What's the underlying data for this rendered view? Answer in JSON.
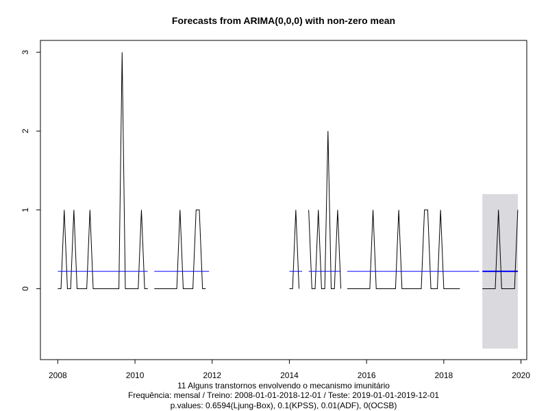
{
  "chart_data": {
    "type": "line",
    "title": "Forecasts from ARIMA(0,0,0) with non-zero mean",
    "xlabel": "",
    "ylabel": "",
    "xlim": [
      2007.55,
      2020.15
    ],
    "ylim": [
      -0.9,
      3.15
    ],
    "x_ticks": [
      2008,
      2010,
      2012,
      2014,
      2016,
      2018,
      2020
    ],
    "y_ticks": [
      0,
      1,
      2,
      3
    ],
    "grid": false,
    "series": [
      {
        "role": "observed",
        "color": "#000000",
        "t0": 2008.0,
        "step": 0.08333333,
        "values": [
          0,
          0,
          1,
          0,
          0,
          1,
          0,
          0,
          0,
          0,
          1,
          0,
          0,
          0,
          0,
          0,
          0,
          0,
          0,
          0,
          3,
          0,
          0,
          0,
          0,
          0,
          1,
          0,
          0,
          null,
          0,
          0,
          0,
          0,
          0,
          0,
          0,
          0,
          1,
          0,
          0,
          0,
          0,
          1,
          1,
          0,
          0,
          null,
          null,
          null,
          null,
          null,
          null,
          null,
          null,
          null,
          null,
          null,
          null,
          null,
          null,
          null,
          null,
          null,
          null,
          null,
          null,
          null,
          null,
          null,
          null,
          null,
          0,
          0,
          1,
          0,
          null,
          null,
          1,
          0,
          0,
          1,
          0,
          0,
          2,
          0,
          0,
          1,
          0,
          null,
          0,
          0,
          0,
          0,
          0,
          0,
          0,
          0,
          1,
          0,
          0,
          0,
          0,
          0,
          0,
          0,
          1,
          0,
          0,
          0,
          0,
          0,
          0,
          0,
          1,
          1,
          0,
          0,
          0,
          1,
          0,
          0,
          0,
          0,
          0,
          0
        ]
      },
      {
        "role": "fitted-mean",
        "color": "#0000ff",
        "segments": [
          {
            "x": [
              2008.0,
              2010.33
            ],
            "y": 0.22
          },
          {
            "x": [
              2010.5,
              2011.92
            ],
            "y": 0.22
          },
          {
            "x": [
              2014.0,
              2014.33
            ],
            "y": 0.22
          },
          {
            "x": [
              2014.5,
              2015.33
            ],
            "y": 0.22
          },
          {
            "x": [
              2015.5,
              2018.92
            ],
            "y": 0.22
          }
        ]
      },
      {
        "role": "forecast",
        "color": "#0000ff",
        "x": [
          2019.0,
          2019.92
        ],
        "y": 0.22
      },
      {
        "role": "test",
        "color": "#000000",
        "t0": 2019.0,
        "step": 0.08333333,
        "values": [
          0,
          0,
          0,
          0,
          0,
          1,
          0,
          0,
          0,
          0,
          0,
          1
        ]
      }
    ],
    "interval": {
      "color": "#d9d9de",
      "x": [
        2019.0,
        2019.92
      ],
      "y": [
        -0.76,
        1.2
      ]
    },
    "captions": [
      "11 Alguns transtornos envolvendo o mecanismo imunitário",
      "Frequência: mensal / Treino: 2008-01-01-2018-12-01 / Teste: 2019-01-01-2019-12-01",
      "p.values: 0.6594(Ljung-Box), 0.1(KPSS), 0.01(ADF), 0(OCSB)"
    ]
  }
}
